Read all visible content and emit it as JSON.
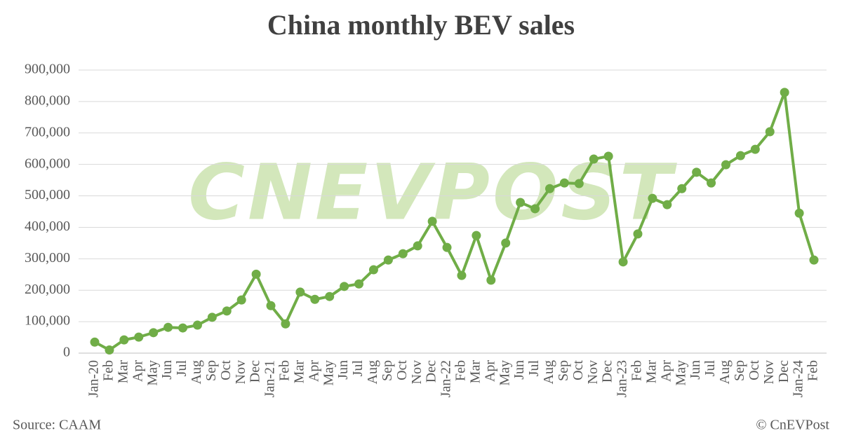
{
  "chart_data": {
    "type": "line",
    "title": "China monthly BEV sales",
    "categories": [
      "Jan-20",
      "Feb",
      "Mar",
      "Apr",
      "May",
      "Jun",
      "Jul",
      "Aug",
      "Sep",
      "Oct",
      "Nov",
      "Dec",
      "Jan-21",
      "Feb",
      "Mar",
      "Apr",
      "May",
      "Jun",
      "Jul",
      "Aug",
      "Sep",
      "Oct",
      "Nov",
      "Dec",
      "Jan-22",
      "Feb",
      "Mar",
      "Apr",
      "May",
      "Jun",
      "Jul",
      "Aug",
      "Sep",
      "Oct",
      "Nov",
      "Dec",
      "Jan-23",
      "Feb",
      "Mar",
      "Apr",
      "May",
      "Jun",
      "Jul",
      "Aug",
      "Sep",
      "Oct",
      "Nov",
      "Dec",
      "Jan-24",
      "Feb"
    ],
    "values": [
      35000,
      10000,
      42000,
      51000,
      65000,
      82000,
      80000,
      89000,
      114000,
      134000,
      169000,
      251000,
      151000,
      93000,
      194000,
      171000,
      180000,
      212000,
      220000,
      265000,
      296000,
      316000,
      341000,
      419000,
      336000,
      247000,
      374000,
      232000,
      350000,
      479000,
      459000,
      523000,
      541000,
      539000,
      617000,
      626000,
      290000,
      379000,
      492000,
      472000,
      523000,
      575000,
      541000,
      599000,
      628000,
      648000,
      704000,
      829000,
      445000,
      296000
    ],
    "color": "#70ad47",
    "ylim": [
      0,
      900000
    ],
    "yticks": [
      0,
      {
        "value": 100000,
        "label": "100,000"
      },
      {
        "value": 200000,
        "label": "200,000"
      },
      {
        "value": 300000,
        "label": "300,000"
      },
      {
        "value": 400000,
        "label": "400,000"
      },
      {
        "value": 500000,
        "label": "500,000"
      },
      {
        "value": 600000,
        "label": "600,000"
      },
      {
        "value": 700000,
        "label": "700,000"
      },
      {
        "value": 800000,
        "label": "800,000"
      },
      {
        "value": 900000,
        "label": "900,000"
      }
    ],
    "grid": true,
    "watermark": "CNEVPOST",
    "source": "Source: CAAM",
    "credit": "© CnEVPost"
  }
}
